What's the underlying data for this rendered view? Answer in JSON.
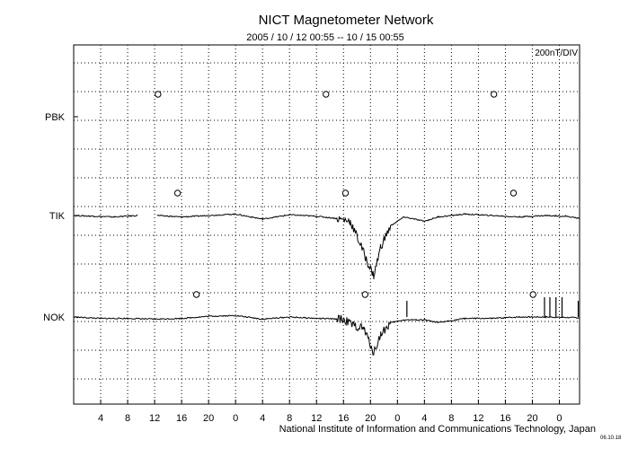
{
  "chart_data": {
    "type": "line",
    "title": "NICT Magnetometer Network",
    "subtitle": "2005 / 10 / 12   00:55 -- 10 / 15   00:55",
    "scale_label": "200nT/DIV",
    "credit": "National Institute of Information and Communications Technology, Japan",
    "stamp": "06.10.18",
    "x_tick_labels": [
      "4",
      "8",
      "12",
      "16",
      "20",
      "0",
      "4",
      "8",
      "12",
      "16",
      "20",
      "0",
      "4",
      "8",
      "12",
      "16",
      "20",
      "0"
    ],
    "xlim_hours": [
      0,
      75
    ],
    "stations": [
      {
        "name": "PBK",
        "noon_marker_hours": [
          12.5,
          37.4,
          62.3
        ],
        "series": []
      },
      {
        "name": "TIK",
        "noon_marker_hours": [
          15.4,
          40.3,
          65.2
        ],
        "gaps": [
          [
            9.4,
            12.4
          ]
        ],
        "series": [
          {
            "x": 0,
            "y": 0
          },
          {
            "x": 3,
            "y": -5
          },
          {
            "x": 6,
            "y": -10
          },
          {
            "x": 9.4,
            "y": 0
          },
          {
            "x": 12.4,
            "y": 0
          },
          {
            "x": 16,
            "y": -10
          },
          {
            "x": 20,
            "y": 0
          },
          {
            "x": 24,
            "y": 10
          },
          {
            "x": 28,
            "y": -25
          },
          {
            "x": 32,
            "y": 5
          },
          {
            "x": 36,
            "y": -5
          },
          {
            "x": 39,
            "y": -20
          },
          {
            "x": 41,
            "y": -40
          },
          {
            "x": 42.5,
            "y": -200
          },
          {
            "x": 43.5,
            "y": -320
          },
          {
            "x": 44.5,
            "y": -420
          },
          {
            "x": 45.5,
            "y": -220
          },
          {
            "x": 47,
            "y": -70
          },
          {
            "x": 49,
            "y": -10
          },
          {
            "x": 52,
            "y": -40
          },
          {
            "x": 54,
            "y": -10
          },
          {
            "x": 58,
            "y": 10
          },
          {
            "x": 62,
            "y": 0
          },
          {
            "x": 66,
            "y": -10
          },
          {
            "x": 70,
            "y": 0
          },
          {
            "x": 73,
            "y": -5
          },
          {
            "x": 75,
            "y": -20
          }
        ]
      },
      {
        "name": "NOK",
        "noon_marker_hours": [
          18.2,
          43.2,
          68.1
        ],
        "spikes_hours": [
          49.4,
          69.8,
          70.6,
          71.5,
          72.4,
          74.8
        ],
        "series": [
          {
            "x": 0,
            "y": 0
          },
          {
            "x": 4,
            "y": -10
          },
          {
            "x": 8,
            "y": -10
          },
          {
            "x": 12,
            "y": -15
          },
          {
            "x": 16,
            "y": -10
          },
          {
            "x": 20,
            "y": 5
          },
          {
            "x": 24,
            "y": 10
          },
          {
            "x": 28,
            "y": -15
          },
          {
            "x": 32,
            "y": 0
          },
          {
            "x": 36,
            "y": -10
          },
          {
            "x": 40,
            "y": -15
          },
          {
            "x": 41.5,
            "y": -60
          },
          {
            "x": 43,
            "y": -80
          },
          {
            "x": 44.5,
            "y": -250
          },
          {
            "x": 45.5,
            "y": -120
          },
          {
            "x": 47,
            "y": -40
          },
          {
            "x": 49,
            "y": -20
          },
          {
            "x": 52,
            "y": -20
          },
          {
            "x": 54,
            "y": -40
          },
          {
            "x": 58,
            "y": -10
          },
          {
            "x": 62,
            "y": -10
          },
          {
            "x": 66,
            "y": 0
          },
          {
            "x": 70,
            "y": 0
          },
          {
            "x": 75,
            "y": -5
          }
        ]
      }
    ]
  }
}
